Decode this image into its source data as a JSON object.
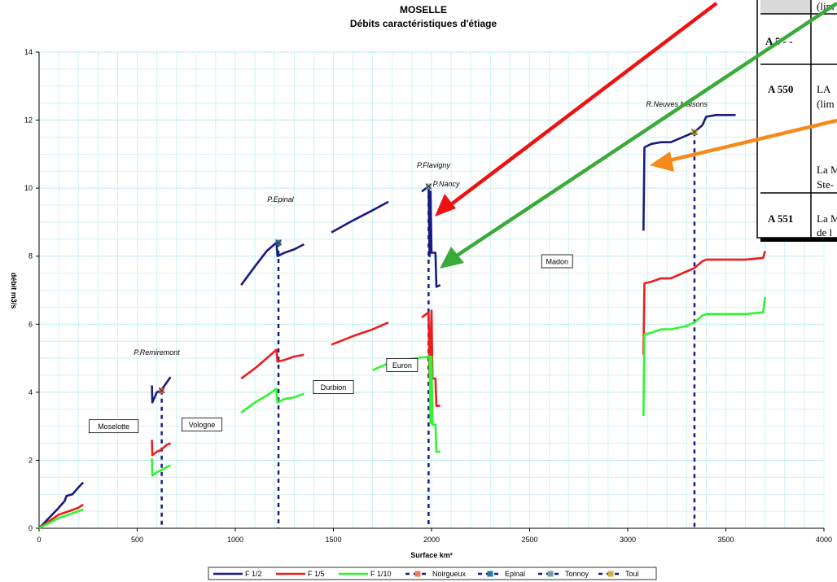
{
  "chart_data": {
    "type": "line",
    "title": "MOSELLE",
    "subtitle": "Débits caractéristiques d'étiage",
    "xlabel": "Surface km²",
    "ylabel": "débit m3/s",
    "xlim": [
      0,
      4000
    ],
    "ylim": [
      0,
      14
    ],
    "x_ticks": [
      0,
      500,
      1000,
      1500,
      2000,
      2500,
      3000,
      3500,
      4000
    ],
    "y_ticks": [
      0,
      2,
      4,
      6,
      8,
      10,
      12,
      14
    ],
    "grid": true,
    "legend_position": "bottom",
    "series": [
      {
        "name": "F 1/2",
        "color": "#1a1a80",
        "segments": [
          [
            [
              0,
              0
            ],
            [
              50,
              0.3
            ],
            [
              100,
              0.6
            ],
            [
              130,
              0.8
            ],
            [
              140,
              0.95
            ],
            [
              170,
              1.0
            ],
            [
              200,
              1.2
            ],
            [
              225,
              1.35
            ]
          ],
          [
            [
              575,
              4.2
            ],
            [
              577,
              3.7
            ],
            [
              600,
              4.0
            ],
            [
              620,
              4.05
            ],
            [
              640,
              4.2
            ],
            [
              670,
              4.45
            ]
          ],
          [
            [
              1030,
              7.15
            ],
            [
              1100,
              7.7
            ],
            [
              1160,
              8.15
            ],
            [
              1210,
              8.4
            ],
            [
              1215,
              8.0
            ],
            [
              1250,
              8.1
            ],
            [
              1300,
              8.2
            ],
            [
              1350,
              8.35
            ]
          ],
          [
            [
              1490,
              8.7
            ],
            [
              1600,
              9.05
            ],
            [
              1700,
              9.35
            ],
            [
              1780,
              9.6
            ]
          ],
          [
            [
              1950,
              9.9
            ],
            [
              1985,
              10.05
            ],
            [
              1990,
              8.0
            ],
            [
              1995,
              9.9
            ],
            [
              2000,
              8.1
            ],
            [
              2020,
              8.1
            ],
            [
              2025,
              7.1
            ],
            [
              2045,
              7.15
            ]
          ],
          [
            [
              3080,
              8.75
            ],
            [
              3085,
              11.2
            ],
            [
              3120,
              11.3
            ],
            [
              3170,
              11.35
            ],
            [
              3220,
              11.35
            ],
            [
              3300,
              11.55
            ],
            [
              3340,
              11.65
            ],
            [
              3380,
              11.85
            ],
            [
              3400,
              12.1
            ],
            [
              3450,
              12.15
            ],
            [
              3550,
              12.15
            ]
          ]
        ]
      },
      {
        "name": "F 1/5",
        "color": "#ee1c1c",
        "segments": [
          [
            [
              0,
              0
            ],
            [
              50,
              0.2
            ],
            [
              100,
              0.4
            ],
            [
              150,
              0.5
            ],
            [
              200,
              0.6
            ],
            [
              225,
              0.7
            ]
          ],
          [
            [
              575,
              2.6
            ],
            [
              577,
              2.15
            ],
            [
              600,
              2.25
            ],
            [
              620,
              2.3
            ],
            [
              650,
              2.45
            ],
            [
              670,
              2.5
            ]
          ],
          [
            [
              1030,
              4.4
            ],
            [
              1100,
              4.7
            ],
            [
              1160,
              5.0
            ],
            [
              1210,
              5.25
            ],
            [
              1215,
              4.9
            ],
            [
              1250,
              4.95
            ],
            [
              1300,
              5.05
            ],
            [
              1350,
              5.1
            ]
          ],
          [
            [
              1490,
              5.4
            ],
            [
              1600,
              5.65
            ],
            [
              1700,
              5.85
            ],
            [
              1780,
              6.05
            ]
          ],
          [
            [
              1950,
              6.2
            ],
            [
              1985,
              6.35
            ],
            [
              1990,
              4.4
            ],
            [
              2000,
              6.4
            ],
            [
              2005,
              4.4
            ],
            [
              2020,
              4.4
            ],
            [
              2025,
              3.6
            ],
            [
              2045,
              3.6
            ]
          ],
          [
            [
              3080,
              5.1
            ],
            [
              3085,
              7.2
            ],
            [
              3120,
              7.25
            ],
            [
              3170,
              7.35
            ],
            [
              3220,
              7.35
            ],
            [
              3300,
              7.55
            ],
            [
              3340,
              7.65
            ],
            [
              3380,
              7.85
            ],
            [
              3400,
              7.9
            ],
            [
              3450,
              7.9
            ],
            [
              3600,
              7.9
            ],
            [
              3690,
              7.95
            ],
            [
              3700,
              8.15
            ]
          ]
        ]
      },
      {
        "name": "F 1/10",
        "color": "#2ef52e",
        "segments": [
          [
            [
              0,
              0
            ],
            [
              50,
              0.15
            ],
            [
              100,
              0.3
            ],
            [
              150,
              0.4
            ],
            [
              200,
              0.5
            ],
            [
              225,
              0.55
            ]
          ],
          [
            [
              575,
              2.05
            ],
            [
              577,
              1.55
            ],
            [
              600,
              1.65
            ],
            [
              620,
              1.7
            ],
            [
              650,
              1.8
            ],
            [
              670,
              1.85
            ]
          ],
          [
            [
              1030,
              3.4
            ],
            [
              1100,
              3.7
            ],
            [
              1160,
              3.9
            ],
            [
              1210,
              4.1
            ],
            [
              1215,
              3.7
            ],
            [
              1250,
              3.8
            ],
            [
              1300,
              3.85
            ],
            [
              1350,
              3.95
            ]
          ],
          [
            [
              1700,
              4.65
            ],
            [
              1780,
              4.85
            ],
            [
              1850,
              4.95
            ],
            [
              1990,
              5.05
            ],
            [
              1995,
              3.1
            ],
            [
              2000,
              5.05
            ],
            [
              2005,
              3.05
            ],
            [
              2020,
              3.05
            ],
            [
              2025,
              2.25
            ],
            [
              2045,
              2.25
            ]
          ],
          [
            [
              3080,
              3.3
            ],
            [
              3085,
              5.7
            ],
            [
              3120,
              5.75
            ],
            [
              3170,
              5.85
            ],
            [
              3220,
              5.85
            ],
            [
              3300,
              5.95
            ],
            [
              3340,
              6.05
            ],
            [
              3380,
              6.25
            ],
            [
              3400,
              6.3
            ],
            [
              3500,
              6.3
            ],
            [
              3600,
              6.3
            ],
            [
              3690,
              6.35
            ],
            [
              3700,
              6.8
            ]
          ]
        ]
      }
    ],
    "gauging_stations": [
      {
        "name": "Noirgueux",
        "surface": 625,
        "color": "#f07a5c",
        "values": {
          "F 1/2": 4.05
        }
      },
      {
        "name": "Epinal",
        "surface": 1220,
        "color": "#1f7fa0",
        "values": {
          "F 1/2": 8.4
        }
      },
      {
        "name": "Tonnoy",
        "surface": 1985,
        "color": "#6fa0a0",
        "values": {
          "F 1/2": 10.05
        }
      },
      {
        "name": "Toul",
        "surface": 3340,
        "color": "#c8b040",
        "values": {
          "F 1/2": 11.65
        }
      }
    ],
    "annotations": [
      {
        "text": "P.Remiremont",
        "x": 600,
        "y": 5.1
      },
      {
        "text": "P.Epinal",
        "x": 1230,
        "y": 9.6
      },
      {
        "text": "P.Flavigny",
        "x": 2010,
        "y": 10.6
      },
      {
        "text": "P.Nancy",
        "x": 2075,
        "y": 10.05
      },
      {
        "text": "R.Neuves Maisons",
        "x": 3250,
        "y": 12.4
      }
    ],
    "boxed_labels": [
      {
        "text": "Moselotte",
        "x": 380,
        "y": 3.0
      },
      {
        "text": "Vologne",
        "x": 830,
        "y": 3.05
      },
      {
        "text": "Durbion",
        "x": 1500,
        "y": 4.15
      },
      {
        "text": "Euron",
        "x": 1850,
        "y": 4.8
      },
      {
        "text": "Madon",
        "x": 2640,
        "y": 7.85
      }
    ]
  },
  "table": {
    "rows": [
      {
        "code": "",
        "lines": [
          "(lim"
        ]
      },
      {
        "code": "A 5 - -",
        "lines": [
          ""
        ]
      },
      {
        "code": "A 550",
        "lines": [
          "LA",
          "(lim",
          "",
          "La M",
          "Ste-"
        ]
      },
      {
        "code": "A 551",
        "lines": [
          "La M",
          "de l"
        ]
      }
    ]
  },
  "arrows": [
    {
      "color": "#ee1111"
    },
    {
      "color": "#3aaa3a"
    },
    {
      "color": "#f58a1a"
    }
  ]
}
